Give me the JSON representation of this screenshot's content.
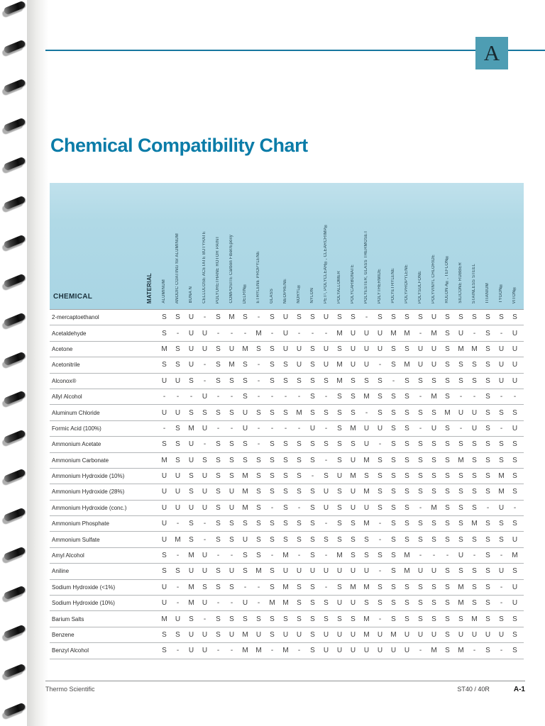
{
  "page": {
    "tab_letter": "A",
    "title": "Chemical Compatibility Chart"
  },
  "footer": {
    "brand": "Thermo Scientific",
    "model": "ST40 / 40R",
    "page_number": "A-1"
  },
  "colors": {
    "accent_teal": "#0b7ca8",
    "tab_background": "#4e9db3",
    "table_header_background": "#a9d5e4"
  },
  "table": {
    "chemical_header": "CHEMICAL",
    "material_header": "MATERIAL",
    "columns": [
      "ALUMINUM",
      "ANODIC COATING for ALUMINUM",
      "BUNA N",
      "CELLULOSE ACETATE BUTYRATE",
      "POLYURETHANE ROTOR PAINT",
      "COMPOSITE Carbon Fiber/Epoxy",
      "DELRIN®",
      "ETHYLENE PROPYLENE",
      "GLASS",
      "NEOPRENE",
      "NORYL®",
      "NYLON",
      "PET¹, POLYCLEAR®, CLEARCRIMP®",
      "POLYALLOMER",
      "POLYCARBONATE",
      "POLYESTER, GLASS THERMOSET",
      "POLYTHERMIDE",
      "POLYETHYLENE",
      "POLYPROPYLENE",
      "POLYSULFONE",
      "POLYVINYL CHLORIDE",
      "RULON A®, TEFLON®",
      "SILICONE RUBBER",
      "STAINLESS STEEL",
      "TITANIUM",
      "TYGON®",
      "VITON®"
    ],
    "rows": [
      {
        "chemical": "2-mercaptoethanol",
        "values": [
          "S",
          "S",
          "U",
          "-",
          "S",
          "M",
          "S",
          "-",
          "S",
          "U",
          "S",
          "S",
          "U",
          "S",
          "S",
          "-",
          "S",
          "S",
          "S",
          "S",
          "U",
          "S",
          "S",
          "S",
          "S",
          "S",
          "S"
        ]
      },
      {
        "chemical": "Acetaldehyde",
        "values": [
          "S",
          "-",
          "U",
          "U",
          "-",
          "-",
          "-",
          "M",
          "-",
          "U",
          "-",
          "-",
          "-",
          "M",
          "U",
          "U",
          "U",
          "M",
          "M",
          "-",
          "M",
          "S",
          "U",
          "-",
          "S",
          "-",
          "U"
        ]
      },
      {
        "chemical": "Acetone",
        "values": [
          "M",
          "S",
          "U",
          "U",
          "S",
          "U",
          "M",
          "S",
          "S",
          "U",
          "U",
          "S",
          "U",
          "S",
          "U",
          "U",
          "U",
          "S",
          "S",
          "U",
          "U",
          "S",
          "M",
          "M",
          "S",
          "U",
          "U"
        ]
      },
      {
        "chemical": "Acetonitrile",
        "values": [
          "S",
          "S",
          "U",
          "-",
          "S",
          "M",
          "S",
          "-",
          "S",
          "S",
          "U",
          "S",
          "U",
          "M",
          "U",
          "U",
          "-",
          "S",
          "M",
          "U",
          "U",
          "S",
          "S",
          "S",
          "S",
          "U",
          "U"
        ]
      },
      {
        "chemical": "Alconox®",
        "values": [
          "U",
          "U",
          "S",
          "-",
          "S",
          "S",
          "S",
          "-",
          "S",
          "S",
          "S",
          "S",
          "S",
          "M",
          "S",
          "S",
          "S",
          "-",
          "S",
          "S",
          "S",
          "S",
          "S",
          "S",
          "S",
          "U",
          "U"
        ]
      },
      {
        "chemical": "Allyl Alcohol",
        "values": [
          "-",
          "-",
          "-",
          "U",
          "-",
          "-",
          "S",
          "-",
          "-",
          "-",
          "-",
          "S",
          "-",
          "S",
          "S",
          "M",
          "S",
          "S",
          "S",
          "-",
          "M",
          "S",
          "-",
          "-",
          "S",
          "-",
          "-"
        ]
      },
      {
        "chemical": "Aluminum Chloride",
        "values": [
          "U",
          "U",
          "S",
          "S",
          "S",
          "S",
          "U",
          "S",
          "S",
          "S",
          "M",
          "S",
          "S",
          "S",
          "S",
          "-",
          "S",
          "S",
          "S",
          "S",
          "S",
          "M",
          "U",
          "U",
          "S",
          "S",
          "S"
        ]
      },
      {
        "chemical": "Formic Acid (100%)",
        "values": [
          "-",
          "S",
          "M",
          "U",
          "-",
          "-",
          "U",
          "-",
          "-",
          "-",
          "-",
          "U",
          "-",
          "S",
          "M",
          "U",
          "U",
          "S",
          "S",
          "-",
          "U",
          "S",
          "-",
          "U",
          "S",
          "-",
          "U"
        ]
      },
      {
        "chemical": "Ammonium Acetate",
        "values": [
          "S",
          "S",
          "U",
          "-",
          "S",
          "S",
          "S",
          "-",
          "S",
          "S",
          "S",
          "S",
          "S",
          "S",
          "S",
          "U",
          "-",
          "S",
          "S",
          "S",
          "S",
          "S",
          "S",
          "S",
          "S",
          "S",
          "S"
        ]
      },
      {
        "chemical": "Ammonium Carbonate",
        "values": [
          "M",
          "S",
          "U",
          "S",
          "S",
          "S",
          "S",
          "S",
          "S",
          "S",
          "S",
          "S",
          "-",
          "S",
          "U",
          "M",
          "S",
          "S",
          "S",
          "S",
          "S",
          "S",
          "M",
          "S",
          "S",
          "S",
          "S"
        ]
      },
      {
        "chemical": "Ammonium Hydroxide (10%)",
        "values": [
          "U",
          "U",
          "S",
          "U",
          "S",
          "S",
          "M",
          "S",
          "S",
          "S",
          "S",
          "-",
          "S",
          "U",
          "M",
          "S",
          "S",
          "S",
          "S",
          "S",
          "S",
          "S",
          "S",
          "S",
          "S",
          "M",
          "S"
        ]
      },
      {
        "chemical": "Ammonium Hydroxide (28%)",
        "values": [
          "U",
          "U",
          "S",
          "U",
          "S",
          "U",
          "M",
          "S",
          "S",
          "S",
          "S",
          "S",
          "U",
          "S",
          "U",
          "M",
          "S",
          "S",
          "S",
          "S",
          "S",
          "S",
          "S",
          "S",
          "S",
          "M",
          "S"
        ]
      },
      {
        "chemical": "Ammonium Hydroxide (conc.)",
        "values": [
          "U",
          "U",
          "U",
          "U",
          "S",
          "U",
          "M",
          "S",
          "-",
          "S",
          "-",
          "S",
          "U",
          "S",
          "U",
          "U",
          "S",
          "S",
          "S",
          "-",
          "M",
          "S",
          "S",
          "S",
          "-",
          "U",
          "-"
        ]
      },
      {
        "chemical": "Ammonium Phosphate",
        "values": [
          "U",
          "-",
          "S",
          "-",
          "S",
          "S",
          "S",
          "S",
          "S",
          "S",
          "S",
          "S",
          "-",
          "S",
          "S",
          "M",
          "-",
          "S",
          "S",
          "S",
          "S",
          "S",
          "S",
          "M",
          "S",
          "S",
          "S"
        ]
      },
      {
        "chemical": "Ammonium Sulfate",
        "values": [
          "U",
          "M",
          "S",
          "-",
          "S",
          "S",
          "U",
          "S",
          "S",
          "S",
          "S",
          "S",
          "S",
          "S",
          "S",
          "S",
          "-",
          "S",
          "S",
          "S",
          "S",
          "S",
          "S",
          "S",
          "S",
          "S",
          "U"
        ]
      },
      {
        "chemical": "Amyl Alcohol",
        "values": [
          "S",
          "-",
          "M",
          "U",
          "-",
          "-",
          "S",
          "S",
          "-",
          "M",
          "-",
          "S",
          "-",
          "M",
          "S",
          "S",
          "S",
          "S",
          "M",
          "-",
          "-",
          "-",
          "U",
          "-",
          "S",
          "-",
          "M"
        ]
      },
      {
        "chemical": "Aniline",
        "values": [
          "S",
          "S",
          "U",
          "U",
          "S",
          "U",
          "S",
          "M",
          "S",
          "U",
          "U",
          "U",
          "U",
          "U",
          "U",
          "U",
          "-",
          "S",
          "M",
          "U",
          "U",
          "S",
          "S",
          "S",
          "S",
          "U",
          "S"
        ]
      },
      {
        "chemical": "Sodium Hydroxide (<1%)",
        "values": [
          "U",
          "-",
          "M",
          "S",
          "S",
          "S",
          "-",
          "-",
          "S",
          "M",
          "S",
          "S",
          "-",
          "S",
          "M",
          "M",
          "S",
          "S",
          "S",
          "S",
          "S",
          "S",
          "M",
          "S",
          "S",
          "-",
          "U"
        ]
      },
      {
        "chemical": "Sodium Hydroxide (10%)",
        "values": [
          "U",
          "-",
          "M",
          "U",
          "-",
          "-",
          "U",
          "-",
          "M",
          "M",
          "S",
          "S",
          "S",
          "U",
          "U",
          "S",
          "S",
          "S",
          "S",
          "S",
          "S",
          "S",
          "M",
          "S",
          "S",
          "-",
          "U"
        ]
      },
      {
        "chemical": "Barium Salts",
        "values": [
          "M",
          "U",
          "S",
          "-",
          "S",
          "S",
          "S",
          "S",
          "S",
          "S",
          "S",
          "S",
          "S",
          "S",
          "S",
          "M",
          "-",
          "S",
          "S",
          "S",
          "S",
          "S",
          "S",
          "M",
          "S",
          "S",
          "S"
        ]
      },
      {
        "chemical": "Benzene",
        "values": [
          "S",
          "S",
          "U",
          "U",
          "S",
          "U",
          "M",
          "U",
          "S",
          "U",
          "U",
          "S",
          "U",
          "U",
          "U",
          "M",
          "U",
          "M",
          "U",
          "U",
          "U",
          "S",
          "U",
          "U",
          "U",
          "U",
          "S"
        ]
      },
      {
        "chemical": "Benzyl Alcohol",
        "values": [
          "S",
          "-",
          "U",
          "U",
          "-",
          "-",
          "M",
          "M",
          "-",
          "M",
          "-",
          "S",
          "U",
          "U",
          "U",
          "U",
          "U",
          "U",
          "U",
          "-",
          "M",
          "S",
          "M",
          "-",
          "S",
          "-",
          "S"
        ]
      }
    ]
  }
}
